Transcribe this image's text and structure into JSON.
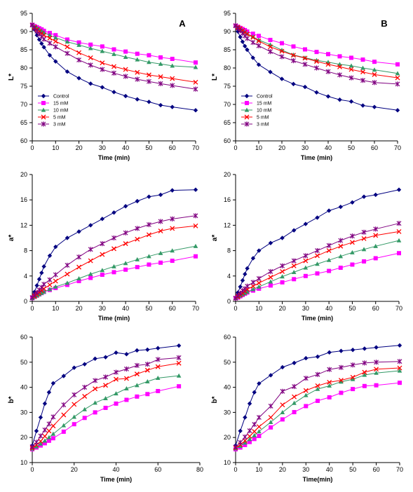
{
  "series_styles": [
    {
      "name": "Control",
      "color": "#000080",
      "marker": "diamond"
    },
    {
      "name": "15 mM",
      "color": "#ff00ff",
      "marker": "square"
    },
    {
      "name": "10 mM",
      "color": "#339966",
      "marker": "triangle"
    },
    {
      "name": "5 mM",
      "color": "#ff0000",
      "marker": "x"
    },
    {
      "name": "3 mM",
      "color": "#800080",
      "marker": "star"
    }
  ],
  "chart_data": [
    {
      "type": "line",
      "panel_label": "A",
      "xlabel": "Time (min)",
      "ylabel": "L*",
      "xlim": [
        0,
        70
      ],
      "xticks": [
        0,
        10,
        20,
        30,
        40,
        50,
        60,
        70
      ],
      "ylim": [
        60,
        95
      ],
      "yticks": [
        60,
        65,
        70,
        75,
        80,
        85,
        90,
        95
      ],
      "legend": true,
      "x": [
        0,
        1,
        2,
        3,
        4,
        5,
        7.5,
        10,
        15,
        20,
        25,
        30,
        35,
        40,
        45,
        50,
        55,
        60,
        70
      ],
      "series": [
        {
          "name": "Control",
          "values": [
            91.8,
            90.5,
            89.0,
            87.8,
            86.7,
            85.7,
            83.5,
            81.8,
            79.0,
            77.2,
            75.7,
            74.7,
            73.4,
            72.3,
            71.4,
            70.7,
            69.8,
            69.3,
            68.4
          ]
        },
        {
          "name": "15 mM",
          "values": [
            91.8,
            91.5,
            91.2,
            90.9,
            90.6,
            90.2,
            89.6,
            89.0,
            87.8,
            87.0,
            86.4,
            85.9,
            85.1,
            84.5,
            83.9,
            83.5,
            82.9,
            82.5,
            81.5
          ]
        },
        {
          "name": "10 mM",
          "values": [
            91.8,
            91.4,
            91.0,
            90.6,
            90.2,
            89.7,
            89.0,
            88.3,
            87.2,
            86.3,
            85.4,
            84.6,
            83.8,
            83.0,
            82.3,
            81.6,
            81.1,
            80.6,
            80.2
          ]
        },
        {
          "name": "5 mM",
          "values": [
            91.8,
            91.2,
            90.6,
            90.0,
            89.5,
            89.0,
            88.2,
            87.3,
            85.8,
            84.2,
            82.8,
            81.4,
            80.4,
            79.6,
            78.8,
            78.1,
            77.6,
            77.1,
            76.1
          ]
        },
        {
          "name": "3 mM",
          "values": [
            91.8,
            90.9,
            90.1,
            89.3,
            88.6,
            87.9,
            86.8,
            85.8,
            84.0,
            82.2,
            80.8,
            79.6,
            78.6,
            77.7,
            76.9,
            76.3,
            75.7,
            75.2,
            74.2
          ]
        }
      ]
    },
    {
      "type": "line",
      "panel_label": "B",
      "xlabel": "Time (min)",
      "ylabel": "L*",
      "xlim": [
        0,
        70
      ],
      "xticks": [
        0,
        10,
        20,
        30,
        40,
        50,
        60,
        70
      ],
      "ylim": [
        60,
        95
      ],
      "yticks": [
        60,
        65,
        70,
        75,
        80,
        85,
        90,
        95
      ],
      "legend": true,
      "x": [
        0,
        1,
        2,
        3,
        4,
        5,
        7.5,
        10,
        15,
        20,
        25,
        30,
        35,
        40,
        45,
        50,
        55,
        60,
        70
      ],
      "series": [
        {
          "name": "Control",
          "values": [
            91.6,
            90.0,
            88.5,
            87.2,
            86.0,
            85.0,
            82.8,
            80.9,
            78.9,
            77.0,
            75.6,
            74.8,
            73.3,
            72.2,
            71.3,
            70.8,
            69.7,
            69.3,
            68.4
          ]
        },
        {
          "name": "15 mM",
          "values": [
            91.6,
            91.3,
            91.0,
            90.7,
            90.4,
            90.0,
            89.4,
            88.8,
            87.7,
            86.8,
            85.9,
            85.1,
            84.4,
            83.8,
            83.2,
            82.8,
            82.3,
            81.7,
            81.0
          ]
        },
        {
          "name": "10 mM",
          "values": [
            91.6,
            91.2,
            90.8,
            90.3,
            89.9,
            89.4,
            88.6,
            87.7,
            86.4,
            84.9,
            83.6,
            82.8,
            82.1,
            81.6,
            81.0,
            80.6,
            80.0,
            79.5,
            78.5
          ]
        },
        {
          "name": "5 mM",
          "values": [
            91.6,
            91.2,
            90.8,
            90.3,
            89.8,
            89.3,
            88.4,
            87.4,
            85.8,
            84.6,
            83.5,
            82.7,
            81.8,
            81.0,
            80.3,
            79.6,
            78.9,
            78.2,
            77.3
          ]
        },
        {
          "name": "3 mM",
          "values": [
            91.6,
            90.9,
            90.2,
            89.5,
            88.8,
            88.1,
            87.0,
            86.1,
            84.5,
            83.1,
            82.0,
            81.0,
            80.0,
            79.0,
            78.1,
            77.3,
            76.6,
            76.0,
            75.6
          ]
        }
      ]
    },
    {
      "type": "line",
      "xlabel": "Time (min)",
      "ylabel": "a*",
      "xlim": [
        0,
        70
      ],
      "xticks": [
        0,
        10,
        20,
        30,
        40,
        50,
        60,
        70
      ],
      "ylim": [
        0,
        20
      ],
      "yticks": [
        0,
        4,
        8,
        12,
        16,
        20
      ],
      "legend": false,
      "x": [
        0,
        1,
        2,
        3,
        4,
        5,
        7.5,
        10,
        15,
        20,
        25,
        30,
        35,
        40,
        45,
        50,
        55,
        60,
        70
      ],
      "series": [
        {
          "name": "Control",
          "values": [
            0.7,
            1.5,
            2.5,
            3.5,
            4.5,
            5.5,
            7.2,
            8.6,
            10.0,
            11.0,
            12.0,
            13.0,
            14.0,
            15.0,
            15.8,
            16.5,
            16.8,
            17.5,
            17.6
          ]
        },
        {
          "name": "15 mM",
          "values": [
            0.5,
            0.7,
            0.9,
            1.1,
            1.3,
            1.5,
            1.8,
            2.1,
            2.6,
            3.2,
            3.7,
            4.2,
            4.6,
            5.0,
            5.4,
            5.8,
            6.1,
            6.4,
            7.1
          ]
        },
        {
          "name": "10 mM",
          "values": [
            0.5,
            0.7,
            0.9,
            1.1,
            1.3,
            1.5,
            1.9,
            2.3,
            2.9,
            3.6,
            4.3,
            4.9,
            5.5,
            6.0,
            6.6,
            7.1,
            7.6,
            8.0,
            8.7
          ]
        },
        {
          "name": "5 mM",
          "values": [
            0.6,
            0.8,
            1.1,
            1.4,
            1.7,
            2.0,
            2.6,
            3.2,
            4.3,
            5.4,
            6.4,
            7.4,
            8.3,
            9.1,
            9.8,
            10.5,
            11.1,
            11.5,
            11.9
          ]
        },
        {
          "name": "3 mM",
          "values": [
            0.6,
            1.0,
            1.4,
            1.8,
            2.2,
            2.7,
            3.4,
            4.2,
            5.7,
            7.0,
            8.2,
            9.1,
            10.0,
            10.8,
            11.5,
            12.1,
            12.6,
            13.0,
            13.5
          ]
        }
      ]
    },
    {
      "type": "line",
      "xlabel": "Time (min)",
      "ylabel": "a*",
      "xlim": [
        0,
        70
      ],
      "xticks": [
        0,
        10,
        20,
        30,
        40,
        50,
        60,
        70
      ],
      "ylim": [
        0,
        20
      ],
      "yticks": [
        0,
        4,
        8,
        12,
        16,
        20
      ],
      "legend": false,
      "x": [
        0,
        1,
        2,
        3,
        4,
        5,
        7.5,
        10,
        15,
        20,
        25,
        30,
        35,
        40,
        45,
        50,
        55,
        60,
        70
      ],
      "series": [
        {
          "name": "Control",
          "values": [
            0.6,
            1.4,
            2.3,
            3.3,
            4.3,
            5.2,
            6.8,
            8.0,
            9.2,
            10.0,
            11.2,
            12.2,
            13.2,
            14.3,
            14.9,
            15.6,
            16.5,
            16.8,
            17.6
          ]
        },
        {
          "name": "15 mM",
          "values": [
            0.5,
            0.6,
            0.8,
            1.0,
            1.2,
            1.4,
            1.7,
            2.0,
            2.5,
            3.0,
            3.5,
            4.0,
            4.4,
            4.8,
            5.3,
            5.8,
            6.3,
            6.8,
            7.6
          ]
        },
        {
          "name": "10 mM",
          "values": [
            0.5,
            0.7,
            0.9,
            1.1,
            1.3,
            1.5,
            1.9,
            2.3,
            3.1,
            3.9,
            4.6,
            5.3,
            5.9,
            6.5,
            7.1,
            7.7,
            8.2,
            8.7,
            9.6
          ]
        },
        {
          "name": "5 mM",
          "values": [
            0.5,
            0.7,
            1.0,
            1.3,
            1.6,
            1.9,
            2.4,
            2.9,
            3.8,
            4.7,
            5.6,
            6.4,
            7.2,
            8.0,
            8.7,
            9.3,
            9.9,
            10.4,
            11.0
          ]
        },
        {
          "name": "3 mM",
          "values": [
            0.5,
            0.9,
            1.3,
            1.7,
            2.0,
            2.4,
            3.0,
            3.6,
            4.7,
            5.6,
            6.4,
            7.2,
            8.0,
            8.8,
            9.6,
            10.3,
            10.9,
            11.4,
            12.3
          ]
        }
      ]
    },
    {
      "type": "line",
      "xlabel": "Time (min)",
      "ylabel": "b*",
      "xlim": [
        0,
        80
      ],
      "xticks": [
        0,
        20,
        40,
        60,
        80
      ],
      "ylim": [
        10,
        60
      ],
      "yticks": [
        10,
        20,
        30,
        40,
        50,
        60
      ],
      "legend": false,
      "x": [
        0,
        2,
        4,
        6,
        8,
        10,
        15,
        20,
        25,
        30,
        35,
        40,
        45,
        50,
        55,
        60,
        70
      ],
      "series": [
        {
          "name": "Control",
          "values": [
            16.8,
            22.6,
            28.0,
            33.5,
            38.0,
            41.6,
            44.5,
            47.8,
            49.2,
            51.4,
            52.0,
            53.8,
            53.2,
            54.7,
            55.0,
            55.6,
            56.6
          ]
        },
        {
          "name": "15 mM",
          "values": [
            15.3,
            16.0,
            16.8,
            17.7,
            18.7,
            19.7,
            22.3,
            25.3,
            27.8,
            30.0,
            31.8,
            33.5,
            35.0,
            36.3,
            37.3,
            38.5,
            40.4
          ]
        },
        {
          "name": "10 mM",
          "values": [
            15.5,
            16.4,
            17.5,
            18.7,
            20.0,
            21.4,
            24.8,
            28.2,
            31.2,
            33.8,
            35.6,
            37.5,
            39.5,
            40.8,
            42.3,
            43.7,
            44.6
          ]
        },
        {
          "name": "5 mM",
          "values": [
            15.8,
            17.0,
            18.5,
            20.5,
            22.6,
            24.6,
            29.0,
            33.2,
            36.4,
            39.4,
            40.8,
            43.2,
            43.5,
            45.3,
            46.8,
            48.2,
            49.6
          ]
        },
        {
          "name": "3 mM",
          "values": [
            16.3,
            18.1,
            20.6,
            23.0,
            25.4,
            28.2,
            33.0,
            37.0,
            40.0,
            42.7,
            44.1,
            46.0,
            47.3,
            48.7,
            49.2,
            51.1,
            51.8
          ]
        }
      ]
    },
    {
      "type": "line",
      "xlabel": "Time(min)",
      "ylabel": "b*",
      "xlim": [
        0,
        70
      ],
      "xticks": [
        0,
        10,
        20,
        30,
        40,
        50,
        60,
        70
      ],
      "ylim": [
        10,
        60
      ],
      "yticks": [
        10,
        20,
        30,
        40,
        50,
        60
      ],
      "legend": false,
      "x": [
        0,
        2,
        4,
        6,
        8,
        10,
        15,
        20,
        25,
        30,
        35,
        40,
        45,
        50,
        55,
        60,
        70
      ],
      "series": [
        {
          "name": "Control",
          "values": [
            16.8,
            22.6,
            28.0,
            33.5,
            38.0,
            41.5,
            44.8,
            48.0,
            49.7,
            51.6,
            52.2,
            53.9,
            54.5,
            54.9,
            55.4,
            55.9,
            56.7
          ]
        },
        {
          "name": "15 mM",
          "values": [
            15.3,
            16.0,
            17.0,
            18.2,
            19.4,
            20.6,
            24.0,
            27.2,
            30.1,
            32.5,
            34.6,
            36.0,
            37.8,
            39.3,
            40.5,
            40.8,
            41.8
          ]
        },
        {
          "name": "10 mM",
          "values": [
            15.6,
            16.6,
            17.9,
            19.3,
            20.8,
            22.4,
            26.1,
            30.0,
            33.7,
            36.8,
            39.3,
            40.6,
            42.2,
            43.2,
            44.9,
            45.7,
            46.6
          ]
        },
        {
          "name": "5 mM",
          "values": [
            15.9,
            17.1,
            18.7,
            20.5,
            22.4,
            24.3,
            28.0,
            33.0,
            36.2,
            38.7,
            40.6,
            42.0,
            42.8,
            44.0,
            46.0,
            47.2,
            47.7
          ]
        },
        {
          "name": "3 mM",
          "values": [
            16.2,
            18.0,
            20.2,
            22.7,
            25.2,
            28.0,
            32.5,
            38.4,
            40.3,
            43.6,
            45.1,
            47.1,
            47.9,
            48.9,
            49.7,
            50.0,
            50.3
          ]
        }
      ]
    }
  ]
}
